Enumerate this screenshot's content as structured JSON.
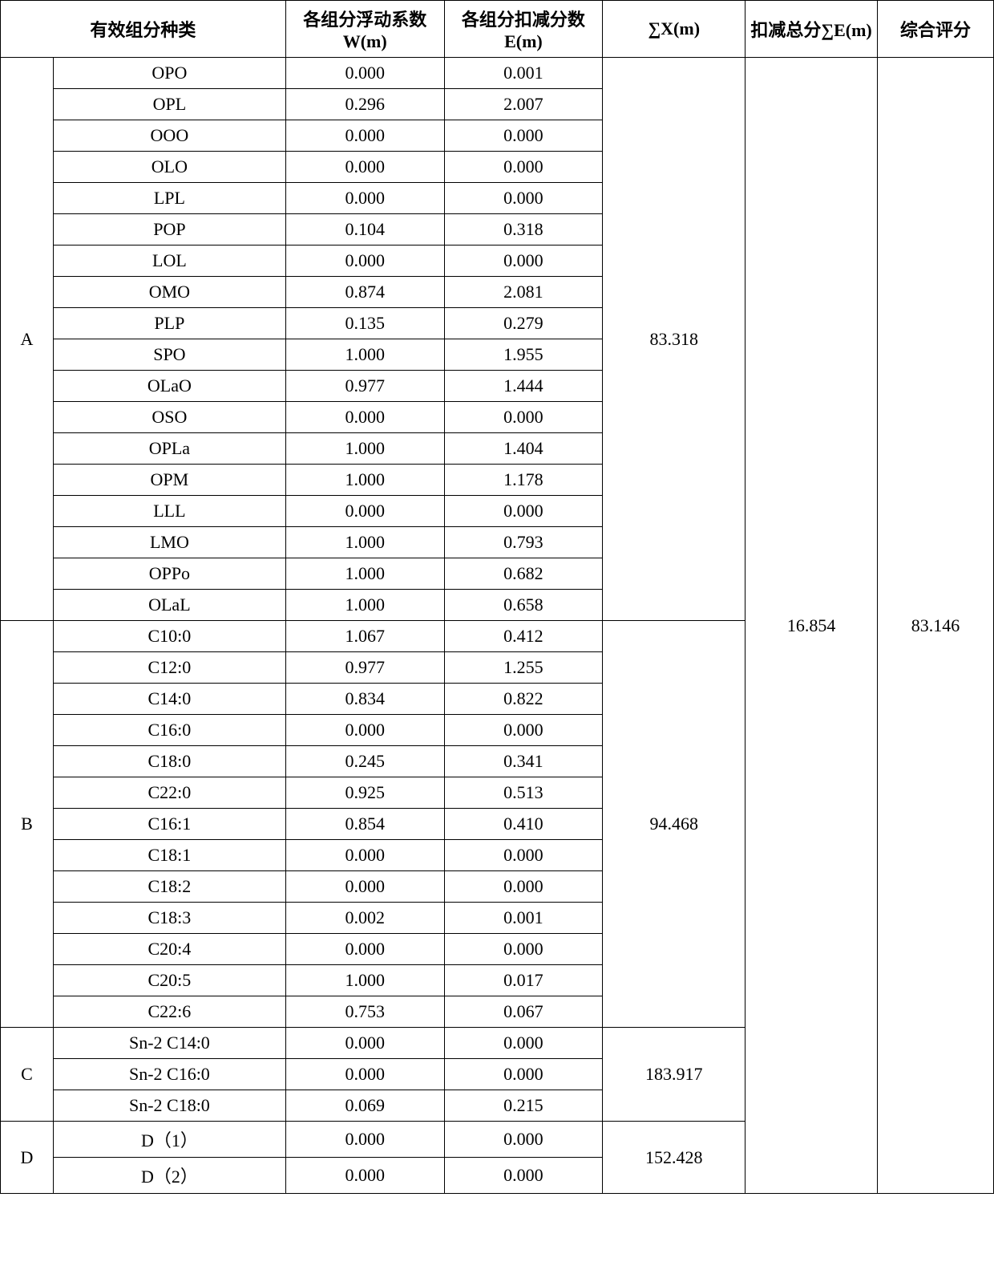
{
  "type": "table",
  "background_color": "#ffffff",
  "border_color": "#000000",
  "font_size": 22,
  "headers": {
    "col_species": "有效组分种类",
    "col_w": "各组分浮动系数 W(m)",
    "col_e": "各组分扣减分数 E(m)",
    "col_sumx": "∑X(m)",
    "col_sume": "扣减总分∑E(m)",
    "col_score": "综合评分"
  },
  "groups": [
    {
      "label": "A",
      "sumx": "83.318",
      "rows": [
        {
          "comp": "OPO",
          "w": "0.000",
          "e": "0.001"
        },
        {
          "comp": "OPL",
          "w": "0.296",
          "e": "2.007"
        },
        {
          "comp": "OOO",
          "w": "0.000",
          "e": "0.000"
        },
        {
          "comp": "OLO",
          "w": "0.000",
          "e": "0.000"
        },
        {
          "comp": "LPL",
          "w": "0.000",
          "e": "0.000"
        },
        {
          "comp": "POP",
          "w": "0.104",
          "e": "0.318"
        },
        {
          "comp": "LOL",
          "w": "0.000",
          "e": "0.000"
        },
        {
          "comp": "OMO",
          "w": "0.874",
          "e": "2.081"
        },
        {
          "comp": "PLP",
          "w": "0.135",
          "e": "0.279"
        },
        {
          "comp": "SPO",
          "w": "1.000",
          "e": "1.955"
        },
        {
          "comp": "OLaO",
          "w": "0.977",
          "e": "1.444"
        },
        {
          "comp": "OSO",
          "w": "0.000",
          "e": "0.000"
        },
        {
          "comp": "OPLa",
          "w": "1.000",
          "e": "1.404"
        },
        {
          "comp": "OPM",
          "w": "1.000",
          "e": "1.178"
        },
        {
          "comp": "LLL",
          "w": "0.000",
          "e": "0.000"
        },
        {
          "comp": "LMO",
          "w": "1.000",
          "e": "0.793"
        },
        {
          "comp": "OPPo",
          "w": "1.000",
          "e": "0.682"
        },
        {
          "comp": "OLaL",
          "w": "1.000",
          "e": "0.658"
        }
      ]
    },
    {
      "label": "B",
      "sumx": "94.468",
      "rows": [
        {
          "comp": "C10:0",
          "w": "1.067",
          "e": "0.412"
        },
        {
          "comp": "C12:0",
          "w": "0.977",
          "e": "1.255"
        },
        {
          "comp": "C14:0",
          "w": "0.834",
          "e": "0.822"
        },
        {
          "comp": "C16:0",
          "w": "0.000",
          "e": "0.000"
        },
        {
          "comp": "C18:0",
          "w": "0.245",
          "e": "0.341"
        },
        {
          "comp": "C22:0",
          "w": "0.925",
          "e": "0.513"
        },
        {
          "comp": "C16:1",
          "w": "0.854",
          "e": "0.410"
        },
        {
          "comp": "C18:1",
          "w": "0.000",
          "e": "0.000"
        },
        {
          "comp": "C18:2",
          "w": "0.000",
          "e": "0.000"
        },
        {
          "comp": "C18:3",
          "w": "0.002",
          "e": "0.001"
        },
        {
          "comp": "C20:4",
          "w": "0.000",
          "e": "0.000"
        },
        {
          "comp": "C20:5",
          "w": "1.000",
          "e": "0.017"
        },
        {
          "comp": "C22:6",
          "w": "0.753",
          "e": "0.067"
        }
      ]
    },
    {
      "label": "C",
      "sumx": "183.917",
      "rows": [
        {
          "comp": "Sn-2 C14:0",
          "w": "0.000",
          "e": "0.000"
        },
        {
          "comp": "Sn-2 C16:0",
          "w": "0.000",
          "e": "0.000"
        },
        {
          "comp": "Sn-2 C18:0",
          "w": "0.069",
          "e": "0.215"
        }
      ]
    },
    {
      "label": "D",
      "sumx": "152.428",
      "rows": [
        {
          "comp": "D（1）",
          "w": "0.000",
          "e": "0.000"
        },
        {
          "comp": "D（2）",
          "w": "0.000",
          "e": "0.000"
        }
      ]
    }
  ],
  "sume_total": "16.854",
  "score_total": "83.146",
  "total_rows": 36
}
